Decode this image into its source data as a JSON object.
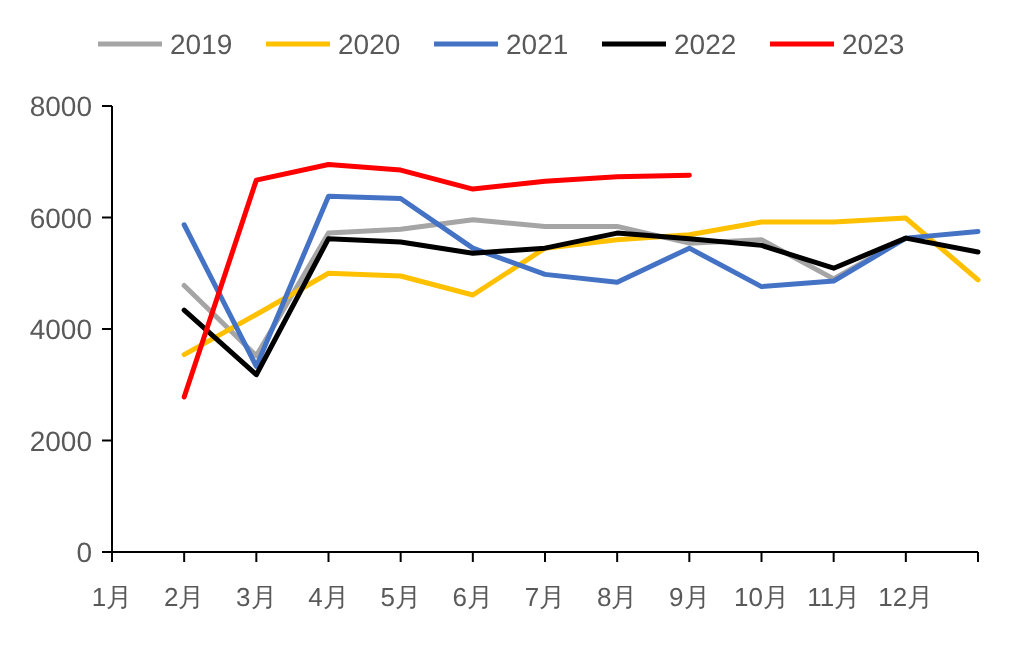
{
  "chart_data": {
    "type": "line",
    "categories": [
      "1月",
      "2月",
      "3月",
      "4月",
      "5月",
      "6月",
      "7月",
      "8月",
      "9月",
      "10月",
      "11月",
      "12月",
      null
    ],
    "series": [
      {
        "name": "2019",
        "color": "#a5a5a5",
        "values": [
          null,
          4780,
          3520,
          5720,
          5790,
          5960,
          5840,
          5840,
          5540,
          5600,
          4900,
          5630,
          null
        ]
      },
      {
        "name": "2020",
        "color": "#ffc000",
        "values": [
          null,
          3540,
          4260,
          5000,
          4950,
          4610,
          5450,
          5600,
          5690,
          5920,
          5920,
          5990,
          4880
        ]
      },
      {
        "name": "2021",
        "color": "#4472c4",
        "values": [
          null,
          5870,
          3330,
          6380,
          6340,
          5450,
          4980,
          4840,
          5450,
          4760,
          4860,
          5630,
          5750
        ]
      },
      {
        "name": "2022",
        "color": "#000000",
        "values": [
          null,
          4340,
          3180,
          5620,
          5560,
          5360,
          5450,
          5720,
          5620,
          5500,
          5090,
          5630,
          5380
        ]
      },
      {
        "name": "2023",
        "color": "#ff0000",
        "values": [
          null,
          2780,
          6670,
          6950,
          6850,
          6510,
          6650,
          6730,
          6760,
          null,
          null,
          null,
          null
        ]
      }
    ],
    "ylim": [
      0,
      8000
    ],
    "yticks": [
      0,
      2000,
      4000,
      6000,
      8000
    ],
    "grid": false,
    "legend": "top",
    "marker": "none",
    "line_style": "solid"
  }
}
